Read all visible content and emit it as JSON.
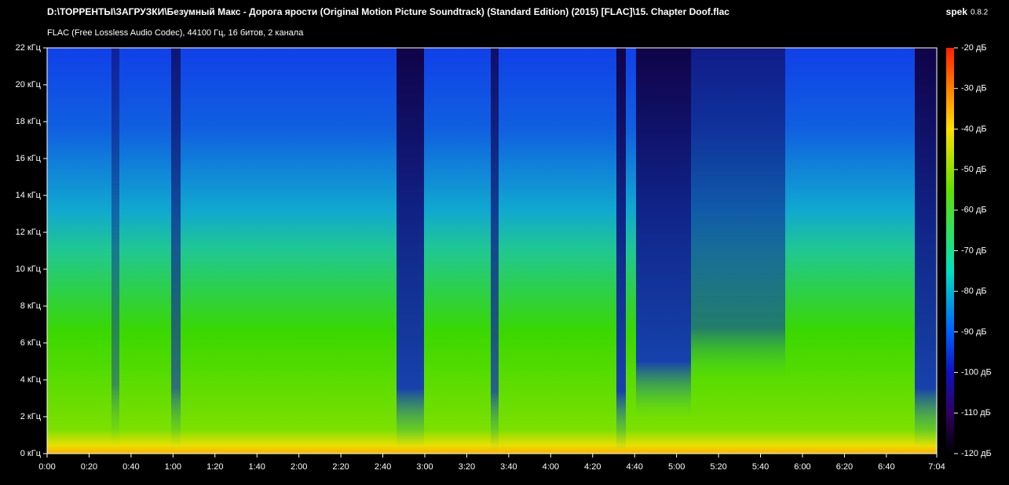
{
  "app": {
    "name": "spek",
    "version": "0.8.2"
  },
  "chart_data": {
    "type": "spectrogram",
    "title": "D:\\ТОРРЕНТЫ\\ЗАГРУЗКИ\\Безумный Макс - Дорога ярости (Original Motion Picture Soundtrack) (Standard Edition) (2015) [FLAC]\\15. Chapter Doof.flac",
    "subtitle": "FLAC (Free Lossless Audio Codec), 44100 Гц, 16 битов, 2 канала",
    "xlim": [
      0,
      424
    ],
    "xticks": [
      {
        "value": 0,
        "label": "0:00"
      },
      {
        "value": 20,
        "label": "0:20"
      },
      {
        "value": 40,
        "label": "0:40"
      },
      {
        "value": 60,
        "label": "1:00"
      },
      {
        "value": 80,
        "label": "1:20"
      },
      {
        "value": 100,
        "label": "1:40"
      },
      {
        "value": 120,
        "label": "2:00"
      },
      {
        "value": 140,
        "label": "2:20"
      },
      {
        "value": 160,
        "label": "2:40"
      },
      {
        "value": 180,
        "label": "3:00"
      },
      {
        "value": 200,
        "label": "3:20"
      },
      {
        "value": 220,
        "label": "3:40"
      },
      {
        "value": 240,
        "label": "4:00"
      },
      {
        "value": 260,
        "label": "4:20"
      },
      {
        "value": 280,
        "label": "4:40"
      },
      {
        "value": 300,
        "label": "5:00"
      },
      {
        "value": 320,
        "label": "5:20"
      },
      {
        "value": 340,
        "label": "5:40"
      },
      {
        "value": 360,
        "label": "6:00"
      },
      {
        "value": 380,
        "label": "6:20"
      },
      {
        "value": 400,
        "label": "6:40"
      },
      {
        "value": 424,
        "label": "7:04"
      }
    ],
    "ylim": [
      0,
      22
    ],
    "yticks": [
      {
        "value": 0,
        "label": "0 кГц"
      },
      {
        "value": 2,
        "label": "2 кГц"
      },
      {
        "value": 4,
        "label": "4 кГц"
      },
      {
        "value": 6,
        "label": "6 кГц"
      },
      {
        "value": 8,
        "label": "8 кГц"
      },
      {
        "value": 10,
        "label": "10 кГц"
      },
      {
        "value": 12,
        "label": "12 кГц"
      },
      {
        "value": 14,
        "label": "14 кГц"
      },
      {
        "value": 16,
        "label": "16 кГц"
      },
      {
        "value": 18,
        "label": "18 кГц"
      },
      {
        "value": 20,
        "label": "20 кГц"
      },
      {
        "value": 22,
        "label": "22 кГц"
      }
    ],
    "colorbar": {
      "lim": [
        -120,
        -20
      ],
      "ticks": [
        {
          "value": -20,
          "label": "-20 дБ"
        },
        {
          "value": -30,
          "label": "-30 дБ"
        },
        {
          "value": -40,
          "label": "-40 дБ"
        },
        {
          "value": -50,
          "label": "-50 дБ"
        },
        {
          "value": -60,
          "label": "-60 дБ"
        },
        {
          "value": -70,
          "label": "-70 дБ"
        },
        {
          "value": -80,
          "label": "-80 дБ"
        },
        {
          "value": -90,
          "label": "-90 дБ"
        },
        {
          "value": -100,
          "label": "-100 дБ"
        },
        {
          "value": -110,
          "label": "-110 дБ"
        },
        {
          "value": -120,
          "label": "-120 дБ"
        }
      ]
    }
  }
}
